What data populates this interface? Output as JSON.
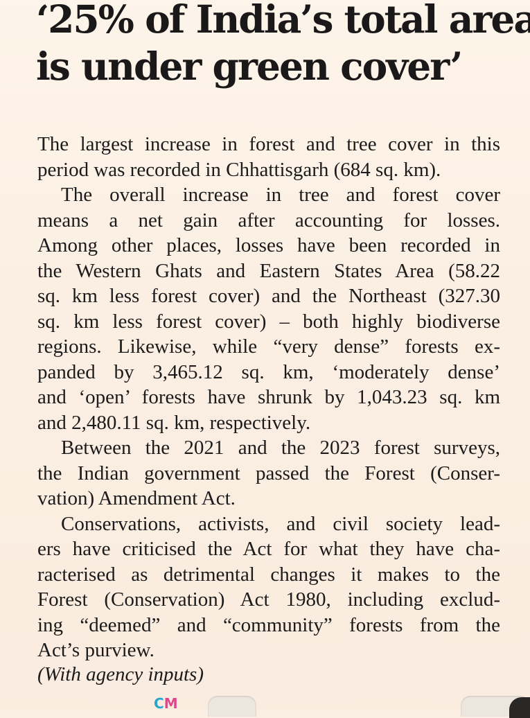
{
  "article": {
    "headline": {
      "line1": "‘25% of India’s total area",
      "line2": "is under green cover’"
    },
    "lines": [
      "The largest increase in forest and tree cover in this",
      "period was recorded in Chhattisgarh (684 sq. km).",
      "The overall increase in tree and forest cover",
      "means a net gain after accounting for losses.",
      "Among other places, losses have been recorded in",
      "the Western Ghats and Eastern States Area (58.22",
      "sq. km less forest cover) and the Northeast (327.30",
      "sq. km less forest cover) – both highly biodiverse",
      "regions. Likewise, while “very dense” forests ex-",
      "panded by 3,465.12 sq. km, ‘moderately dense’",
      "and ‘open’ forests have shrunk by 1,043.23 sq. km",
      "and 2,480.11 sq. km, respectively.",
      "Between the 2021 and the 2023 forest surveys,",
      "the Indian government passed the Forest (Conser-",
      "vation) Amendment Act.",
      "Conservations, activists, and civil society lead-",
      "ers have criticised the Act for what they have cha-",
      "racterised as detrimental changes it makes to the",
      "Forest (Conservation) Act 1980, including exclud-",
      "ing “deemed” and “community” forests from the",
      "Act’s purview."
    ],
    "credit": "(With agency inputs)"
  },
  "print_marks": {
    "c": "C",
    "m": "M"
  },
  "colors": {
    "paper": "#fbefe3",
    "ink": "#1c1b1b",
    "cyan_mark": "#29a6c9",
    "magenta_mark": "#e0458e"
  }
}
